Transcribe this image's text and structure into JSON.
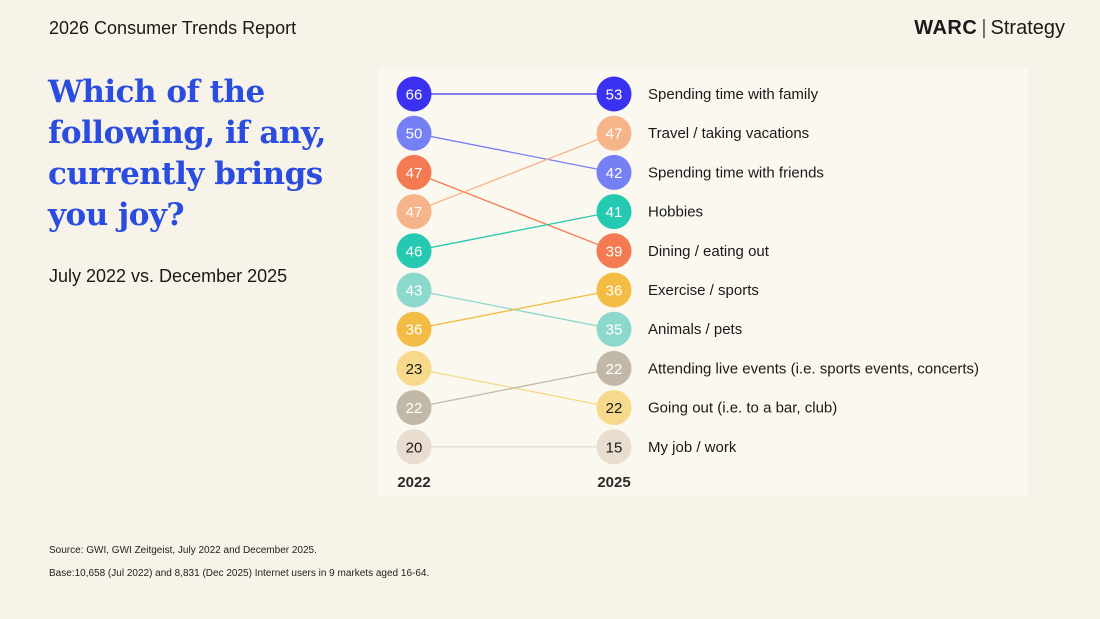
{
  "header": {
    "report_title": "2026 Consumer Trends Report",
    "brand_name": "WARC",
    "brand_section": "Strategy"
  },
  "question": "Which of the following, if any, currently brings you joy?",
  "subtitle": "July 2022 vs. December 2025",
  "footer": {
    "source": "Source: GWI, GWI Zeitgeist, July 2022 and December 2025.",
    "base": "Base:10,658 (Jul 2022) and 8,831 (Dec 2025) Internet users in 9 markets aged 16-64."
  },
  "chart_data": {
    "type": "slope",
    "categories": [
      "2022",
      "2025"
    ],
    "unit": "%",
    "series": [
      {
        "name": "Spending time with family",
        "values": [
          66,
          53
        ],
        "order": [
          1,
          1
        ],
        "color": "#3a32f0",
        "text": "#ffffff"
      },
      {
        "name": "Spending time with friends",
        "values": [
          50,
          42
        ],
        "order": [
          2,
          3
        ],
        "color": "#7580f5",
        "text": "#ffffff"
      },
      {
        "name": "Dining / eating out",
        "values": [
          47,
          39
        ],
        "order": [
          3,
          5
        ],
        "color": "#f47a52",
        "text": "#ffffff"
      },
      {
        "name": "Travel / taking vacations",
        "values": [
          47,
          47
        ],
        "order": [
          4,
          2
        ],
        "color": "#f6b48a",
        "text": "#ffffff"
      },
      {
        "name": "Hobbies",
        "values": [
          46,
          41
        ],
        "order": [
          5,
          4
        ],
        "color": "#25c8b0",
        "text": "#ffffff"
      },
      {
        "name": "Animals / pets",
        "values": [
          43,
          35
        ],
        "order": [
          6,
          7
        ],
        "color": "#8dd8cd",
        "text": "#ffffff"
      },
      {
        "name": "Exercise / sports",
        "values": [
          36,
          36
        ],
        "order": [
          7,
          6
        ],
        "color": "#f2bc45",
        "text": "#ffffff"
      },
      {
        "name": "Going out (i.e. to a bar, club)",
        "values": [
          23,
          22
        ],
        "order": [
          8,
          9
        ],
        "color": "#f6d98a",
        "text": "#1a1a1a"
      },
      {
        "name": "Attending live events (i.e. sports events, concerts)",
        "values": [
          22,
          22
        ],
        "order": [
          9,
          8
        ],
        "color": "#c2b8a8",
        "text": "#ffffff"
      },
      {
        "name": "My job / work",
        "values": [
          20,
          15
        ],
        "order": [
          10,
          10
        ],
        "color": "#e8ddce",
        "text": "#1a1a1a"
      }
    ]
  }
}
